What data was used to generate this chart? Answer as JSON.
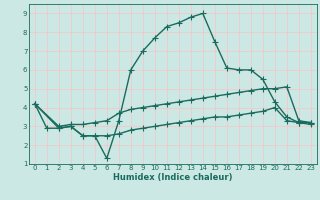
{
  "title": "",
  "xlabel": "Humidex (Indice chaleur)",
  "xlim": [
    -0.5,
    23.5
  ],
  "ylim": [
    1,
    9.5
  ],
  "xticks": [
    0,
    1,
    2,
    3,
    4,
    5,
    6,
    7,
    8,
    9,
    10,
    11,
    12,
    13,
    14,
    15,
    16,
    17,
    18,
    19,
    20,
    21,
    22,
    23
  ],
  "yticks": [
    1,
    2,
    3,
    4,
    5,
    6,
    7,
    8,
    9
  ],
  "bg_color": "#cce8e4",
  "grid_color": "#f0c8c8",
  "line_color": "#1a6b5e",
  "line_width": 1.0,
  "marker": "+",
  "marker_size": 4,
  "curves": [
    {
      "x": [
        0,
        1,
        2,
        3,
        4,
        5,
        6,
        7,
        8,
        9,
        10,
        11,
        12,
        13,
        14,
        15,
        16,
        17,
        18,
        19,
        20,
        21,
        22,
        23
      ],
      "y": [
        4.2,
        2.9,
        2.9,
        3.0,
        2.5,
        2.5,
        1.3,
        3.3,
        6.0,
        7.0,
        7.7,
        8.3,
        8.5,
        8.8,
        9.0,
        7.5,
        6.1,
        6.0,
        6.0,
        5.5,
        4.3,
        3.5,
        3.2,
        3.2
      ]
    },
    {
      "x": [
        0,
        2,
        3,
        4,
        5,
        6,
        7,
        8,
        9,
        10,
        11,
        12,
        13,
        14,
        15,
        16,
        17,
        18,
        19,
        20,
        21,
        22,
        23
      ],
      "y": [
        4.2,
        3.0,
        3.1,
        3.1,
        3.2,
        3.3,
        3.7,
        3.9,
        4.0,
        4.1,
        4.2,
        4.3,
        4.4,
        4.5,
        4.6,
        4.7,
        4.8,
        4.9,
        5.0,
        5.0,
        5.1,
        3.3,
        3.2
      ]
    },
    {
      "x": [
        0,
        2,
        3,
        4,
        5,
        6,
        7,
        8,
        9,
        10,
        11,
        12,
        13,
        14,
        15,
        16,
        17,
        18,
        19,
        20,
        21,
        22,
        23
      ],
      "y": [
        4.2,
        2.9,
        3.0,
        2.5,
        2.5,
        2.5,
        2.6,
        2.8,
        2.9,
        3.0,
        3.1,
        3.2,
        3.3,
        3.4,
        3.5,
        3.5,
        3.6,
        3.7,
        3.8,
        4.0,
        3.3,
        3.2,
        3.1
      ]
    }
  ]
}
